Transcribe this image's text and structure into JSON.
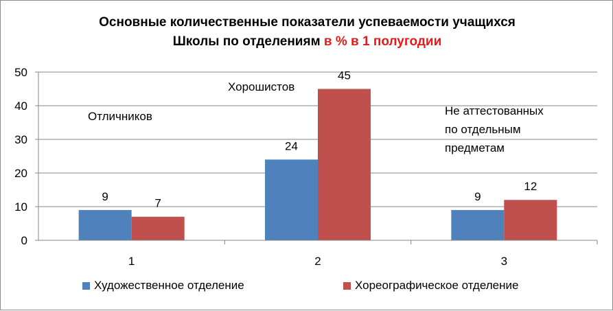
{
  "chart_data": {
    "type": "bar",
    "title_line1": "Основные количественные показатели успеваемости учащихся",
    "title_line2_black": "Школы по отделениям",
    "title_line2_red": "в % в 1 полугодии",
    "categories": [
      "1",
      "2",
      "3"
    ],
    "series": [
      {
        "name": "Художественное отделение",
        "values": [
          9,
          24,
          9
        ],
        "color": "#4f81bd"
      },
      {
        "name": "Хореографическое отделение",
        "values": [
          7,
          45,
          12
        ],
        "color": "#c0504d"
      }
    ],
    "ylim": [
      0,
      50
    ],
    "yticks": [
      0,
      10,
      20,
      30,
      40,
      50
    ],
    "grid": true,
    "legend_position": "bottom",
    "annotations": [
      "Отличников",
      "Хорошистов",
      "Не аттестованных",
      "по отдельным",
      "предметам"
    ]
  },
  "colors": {
    "accent": "#e41b1b",
    "grid": "#868686"
  }
}
